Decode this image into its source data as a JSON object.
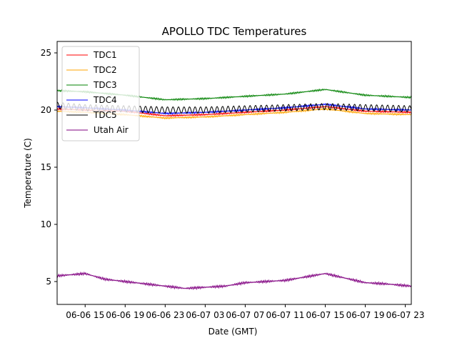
{
  "chart_data": {
    "type": "line",
    "title": "APOLLO TDC Temperatures",
    "xlabel": "Date (GMT)",
    "ylabel": "Temperature (C)",
    "xlim": [
      12.2,
      47.6
    ],
    "ylim": [
      3,
      26
    ],
    "x_unit": "hours since 06-06 00:00 GMT",
    "x_ticks": [
      {
        "value": 15,
        "label": "06-06 15"
      },
      {
        "value": 19,
        "label": "06-06 19"
      },
      {
        "value": 23,
        "label": "06-06 23"
      },
      {
        "value": 27,
        "label": "06-07 03"
      },
      {
        "value": 31,
        "label": "06-07 07"
      },
      {
        "value": 35,
        "label": "06-07 11"
      },
      {
        "value": 39,
        "label": "06-07 15"
      },
      {
        "value": 43,
        "label": "06-07 19"
      },
      {
        "value": 47,
        "label": "06-07 23"
      }
    ],
    "y_ticks": [
      5,
      10,
      15,
      20,
      25
    ],
    "grid": false,
    "legend_position": "top-left",
    "series": [
      {
        "name": "TDC1",
        "color": "#ff0000",
        "x": [
          12.2,
          15,
          19,
          23,
          27,
          31,
          35,
          39,
          43,
          47.6
        ],
        "y": [
          20.1,
          20.0,
          19.9,
          19.5,
          19.6,
          19.8,
          20.0,
          20.3,
          19.9,
          19.8
        ]
      },
      {
        "name": "TDC2",
        "color": "#ffa500",
        "x": [
          12.2,
          15,
          19,
          23,
          27,
          31,
          35,
          39,
          43,
          47.6
        ],
        "y": [
          19.9,
          19.8,
          19.6,
          19.3,
          19.4,
          19.6,
          19.8,
          20.1,
          19.7,
          19.6
        ]
      },
      {
        "name": "TDC3",
        "color": "#008000",
        "x": [
          12.2,
          15,
          19,
          23,
          27,
          31,
          35,
          39,
          43,
          47.6
        ],
        "y": [
          21.7,
          21.6,
          21.3,
          20.9,
          21.0,
          21.2,
          21.4,
          21.8,
          21.3,
          21.1
        ]
      },
      {
        "name": "TDC4",
        "color": "#0000ff",
        "x": [
          12.2,
          15,
          19,
          23,
          27,
          31,
          35,
          39,
          43,
          47.6
        ],
        "y": [
          20.3,
          20.2,
          20.0,
          19.7,
          19.8,
          20.0,
          20.2,
          20.5,
          20.1,
          20.0
        ]
      },
      {
        "name": "TDC5",
        "color": "#000000",
        "x": [
          12.2,
          15,
          19,
          23,
          27,
          31,
          35,
          39,
          43,
          47.6
        ],
        "y": [
          20.4,
          20.2,
          20.1,
          20.0,
          20.0,
          20.1,
          20.2,
          20.3,
          20.2,
          20.1
        ]
      },
      {
        "name": "Utah Air",
        "color": "#800080",
        "x": [
          12.2,
          15,
          17,
          19,
          21,
          23,
          25,
          27,
          29,
          31,
          33,
          35,
          37,
          39,
          41,
          43,
          45,
          47.6
        ],
        "y": [
          5.5,
          5.7,
          5.2,
          5.0,
          4.8,
          4.6,
          4.4,
          4.5,
          4.6,
          4.9,
          5.0,
          5.1,
          5.4,
          5.7,
          5.3,
          4.9,
          4.8,
          4.6
        ]
      }
    ]
  }
}
